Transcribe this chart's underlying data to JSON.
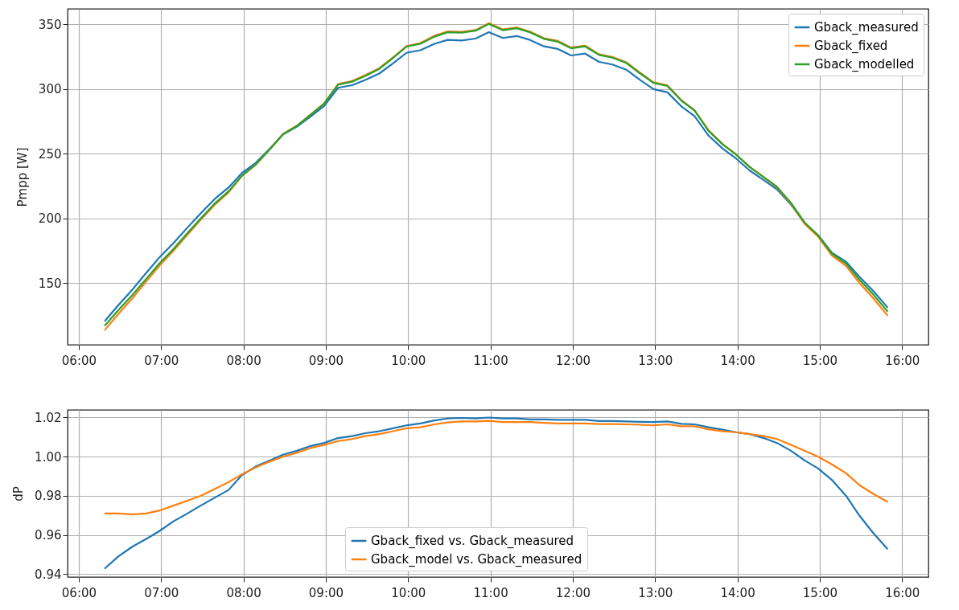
{
  "chart_data": [
    {
      "type": "line",
      "ylabel": "Pmpp [W]",
      "xlim": [
        5.864,
        16.32
      ],
      "ylim": [
        102.4,
        362
      ],
      "xticks": [
        {
          "value": 6,
          "label": "06:00"
        },
        {
          "value": 7,
          "label": "07:00"
        },
        {
          "value": 8,
          "label": "08:00"
        },
        {
          "value": 9,
          "label": "09:00"
        },
        {
          "value": 10,
          "label": "10:00"
        },
        {
          "value": 11,
          "label": "11:00"
        },
        {
          "value": 12,
          "label": "12:00"
        },
        {
          "value": 13,
          "label": "13:00"
        },
        {
          "value": 14,
          "label": "14:00"
        },
        {
          "value": 15,
          "label": "15:00"
        },
        {
          "value": 16,
          "label": "16:00"
        }
      ],
      "yticks": [
        150,
        200,
        250,
        300,
        350
      ],
      "grid": true,
      "legend": "top right",
      "x": [
        6.32,
        6.48,
        6.65,
        6.82,
        6.98,
        7.15,
        7.32,
        7.48,
        7.65,
        7.82,
        7.98,
        8.15,
        8.32,
        8.48,
        8.65,
        8.82,
        8.98,
        9.15,
        9.32,
        9.48,
        9.65,
        9.82,
        9.98,
        10.15,
        10.32,
        10.48,
        10.65,
        10.82,
        10.98,
        11.15,
        11.32,
        11.48,
        11.65,
        11.82,
        11.98,
        12.15,
        12.32,
        12.48,
        12.65,
        12.82,
        12.98,
        13.15,
        13.32,
        13.48,
        13.65,
        13.82,
        13.98,
        14.15,
        14.32,
        14.48,
        14.65,
        14.82,
        14.98,
        15.15,
        15.32,
        15.48,
        15.65,
        15.82
      ],
      "series": [
        {
          "name": "Gback_measured",
          "color": "#1f77b4",
          "values": [
            121,
            133,
            145,
            158,
            170,
            181,
            193,
            204,
            215,
            224,
            235,
            243,
            254,
            265,
            271,
            279,
            287,
            301,
            303,
            307,
            312,
            320,
            328,
            330,
            335,
            338,
            337.5,
            339,
            344,
            339.5,
            341,
            338,
            333,
            331,
            326,
            327.4,
            321,
            319,
            315,
            307,
            300,
            297.5,
            286.6,
            279,
            264,
            254,
            246.5,
            237,
            229.6,
            222.5,
            210.8,
            196,
            187,
            173.4,
            166.6,
            155,
            144,
            131.5
          ]
        },
        {
          "name": "Gback_fixed",
          "color": "#ff7f0e",
          "values": [
            114.1,
            126.2,
            138.3,
            151.4,
            163.5,
            175,
            187.4,
            198.9,
            210.5,
            220.2,
            232.8,
            241.8,
            253.5,
            265.3,
            271.8,
            280.5,
            289,
            303.9,
            306.2,
            310.7,
            316.1,
            324.6,
            333.2,
            335.6,
            341.2,
            344.6,
            344.2,
            345.6,
            350.9,
            346.1,
            347.6,
            344.4,
            339.3,
            337.2,
            332.1,
            333.6,
            326.8,
            324.8,
            320.7,
            312.5,
            305.3,
            302.9,
            291.4,
            283.6,
            268,
            257.5,
            249.6,
            239.7,
            231.8,
            224.1,
            211.4,
            195.6,
            185.9,
            171.3,
            163.3,
            150.4,
            138.4,
            125.3
          ]
        },
        {
          "name": "Gback_modelled",
          "color": "#2ca02c",
          "values": [
            117.5,
            129.1,
            140.7,
            153.4,
            165.3,
            176.5,
            188.7,
            199.9,
            211.5,
            221.1,
            232.9,
            241.7,
            253.4,
            265,
            271.5,
            280.3,
            288.7,
            303.4,
            305.7,
            310.2,
            315.6,
            324.2,
            332.8,
            335,
            340.5,
            343.9,
            343.6,
            345.1,
            350.3,
            345.5,
            347,
            343.9,
            338.8,
            336.6,
            331.5,
            333,
            326.4,
            324.3,
            320.2,
            312,
            304.8,
            302.4,
            291,
            283.3,
            267.7,
            257.3,
            249.6,
            239.7,
            232,
            224.5,
            212.1,
            196.6,
            187,
            172.7,
            165.2,
            152.8,
            141.3,
            128.5
          ]
        }
      ]
    },
    {
      "type": "line",
      "ylabel": "dP",
      "xlim": [
        5.864,
        16.32
      ],
      "ylim": [
        0.9385,
        1.0239
      ],
      "xticks": [
        {
          "value": 6,
          "label": "06:00"
        },
        {
          "value": 7,
          "label": "07:00"
        },
        {
          "value": 8,
          "label": "08:00"
        },
        {
          "value": 9,
          "label": "09:00"
        },
        {
          "value": 10,
          "label": "10:00"
        },
        {
          "value": 11,
          "label": "11:00"
        },
        {
          "value": 12,
          "label": "12:00"
        },
        {
          "value": 13,
          "label": "13:00"
        },
        {
          "value": 14,
          "label": "14:00"
        },
        {
          "value": 15,
          "label": "15:00"
        },
        {
          "value": 16,
          "label": "16:00"
        }
      ],
      "yticks": [
        0.94,
        0.96,
        0.98,
        {
          "value": 1,
          "label": "1.00"
        },
        1.02
      ],
      "grid": true,
      "legend": "bottom",
      "x": [
        6.32,
        6.48,
        6.65,
        6.82,
        6.98,
        7.15,
        7.32,
        7.48,
        7.65,
        7.82,
        7.98,
        8.15,
        8.32,
        8.48,
        8.65,
        8.82,
        8.98,
        9.15,
        9.32,
        9.48,
        9.65,
        9.82,
        9.98,
        10.15,
        10.32,
        10.48,
        10.65,
        10.82,
        10.98,
        11.15,
        11.32,
        11.48,
        11.65,
        11.82,
        11.98,
        12.15,
        12.32,
        12.48,
        12.65,
        12.82,
        12.98,
        13.15,
        13.32,
        13.48,
        13.65,
        13.82,
        13.98,
        14.15,
        14.32,
        14.48,
        14.65,
        14.82,
        14.98,
        15.15,
        15.32,
        15.48,
        15.65,
        15.82
      ],
      "series": [
        {
          "name": "Gback_fixed vs. Gback_measured",
          "color": "#1f77b4",
          "values": [
            0.943,
            0.949,
            0.954,
            0.958,
            0.962,
            0.967,
            0.971,
            0.975,
            0.979,
            0.983,
            0.9905,
            0.995,
            0.998,
            1.001,
            1.003,
            1.0055,
            1.007,
            1.0095,
            1.0105,
            1.012,
            1.013,
            1.0145,
            1.016,
            1.017,
            1.0185,
            1.0195,
            1.0198,
            1.0195,
            1.02,
            1.0195,
            1.0195,
            1.019,
            1.019,
            1.0188,
            1.0188,
            1.0188,
            1.0182,
            1.0182,
            1.018,
            1.0178,
            1.0177,
            1.018,
            1.0168,
            1.0165,
            1.015,
            1.0138,
            1.0125,
            1.0115,
            1.0095,
            1.007,
            1.003,
            0.998,
            0.994,
            0.988,
            0.98,
            0.97,
            0.961,
            0.953
          ]
        },
        {
          "name": "Gback_model vs. Gback_measured",
          "color": "#ff7f0e",
          "values": [
            0.971,
            0.971,
            0.9705,
            0.971,
            0.9725,
            0.975,
            0.9775,
            0.98,
            0.9835,
            0.987,
            0.991,
            0.9945,
            0.9975,
            1,
            1.002,
            1.0045,
            1.006,
            1.008,
            1.009,
            1.0105,
            1.0115,
            1.013,
            1.0145,
            1.015,
            1.0165,
            1.0175,
            1.018,
            1.018,
            1.0183,
            1.0177,
            1.0177,
            1.0177,
            1.0173,
            1.017,
            1.017,
            1.017,
            1.0167,
            1.0167,
            1.0165,
            1.0163,
            1.016,
            1.0165,
            1.0155,
            1.0155,
            1.014,
            1.013,
            1.0125,
            1.0115,
            1.0105,
            1.009,
            1.006,
            1.003,
            1,
            0.996,
            0.9915,
            0.9855,
            0.981,
            0.977
          ]
        }
      ]
    }
  ]
}
